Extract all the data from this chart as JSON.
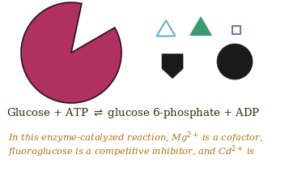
{
  "bg_color": "#ffffff",
  "enzyme_color": "#b03060",
  "enzyme_outline": "#2a1020",
  "triangle1_color": "#5baac8",
  "triangle2_color": "#3a9a70",
  "square_facecolor": "none",
  "square_edgecolor": "#8868aa",
  "shield_color": "#1a1a1a",
  "circle_color": "#1a1a1a",
  "equation_color": "#3a2800",
  "text_color": "#b07010",
  "figw": 3.73,
  "figh": 2.17,
  "dpi": 100
}
